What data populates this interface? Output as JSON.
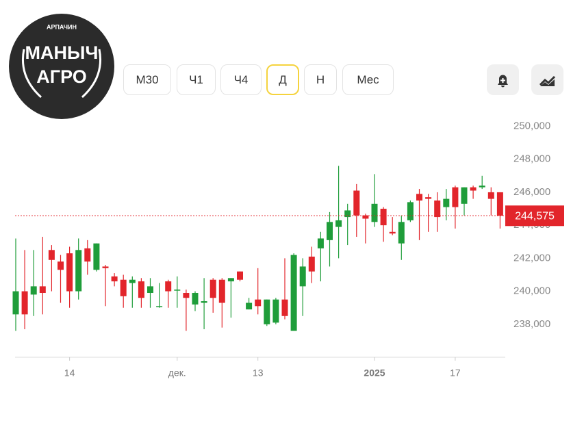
{
  "logo": {
    "top": "АРПАЧИН",
    "line1": "МАНЫЧ",
    "line2": "АГРО"
  },
  "timeframes": [
    {
      "label": "М30",
      "selected": false
    },
    {
      "label": "Ч1",
      "selected": false
    },
    {
      "label": "Ч4",
      "selected": false
    },
    {
      "label": "Д",
      "selected": true
    },
    {
      "label": "Н",
      "selected": false
    },
    {
      "label": "Мес",
      "selected": false
    }
  ],
  "chart_data": {
    "type": "candlestick",
    "categories": [
      null,
      null,
      null,
      null,
      null,
      null,
      "14",
      null,
      null,
      null,
      null,
      null,
      null,
      null,
      null,
      null,
      null,
      null,
      "дек.",
      null,
      null,
      null,
      null,
      null,
      null,
      null,
      null,
      "13",
      null,
      null,
      null,
      null,
      null,
      null,
      null,
      null,
      null,
      null,
      null,
      null,
      "2025",
      null,
      null,
      null,
      null,
      null,
      null,
      null,
      null,
      "17",
      null,
      null,
      null,
      null,
      null
    ],
    "open": [
      238600,
      240000,
      239800,
      240300,
      242500,
      241800,
      242300,
      240000,
      242600,
      241300,
      241500,
      240900,
      240700,
      240500,
      240600,
      239900,
      239100,
      240600,
      240100,
      239900,
      239200,
      239300,
      240700,
      240700,
      240600,
      241200,
      238900,
      239500,
      238000,
      238100,
      239500,
      237600,
      240300,
      242100,
      242600,
      243100,
      243900,
      244500,
      246100,
      244600,
      244200,
      245000,
      243600,
      242900,
      244300,
      245900,
      245700,
      245500,
      245100,
      246300,
      245300,
      246300,
      246300,
      246000,
      246000
    ],
    "high": [
      243200,
      242500,
      242500,
      243300,
      242800,
      242200,
      242700,
      243200,
      243100,
      242900,
      241600,
      241100,
      241000,
      240900,
      240800,
      240800,
      240500,
      240700,
      240900,
      240100,
      240000,
      240800,
      240800,
      240800,
      240800,
      241200,
      239600,
      241400,
      239500,
      239600,
      242000,
      242300,
      242000,
      242700,
      243600,
      244800,
      247600,
      245300,
      246500,
      244700,
      247100,
      245100,
      244500,
      244600,
      245500,
      246200,
      245900,
      246000,
      246200,
      246400,
      246300,
      246400,
      247000,
      246300,
      246000
    ],
    "low": [
      237600,
      237700,
      238500,
      238600,
      240000,
      239300,
      239000,
      239500,
      241000,
      241200,
      239100,
      240300,
      239000,
      239000,
      239000,
      239000,
      239000,
      239000,
      239000,
      237600,
      238800,
      237700,
      238700,
      237800,
      238400,
      240600,
      238900,
      238600,
      237900,
      238000,
      238300,
      237600,
      238500,
      240500,
      240600,
      241500,
      242000,
      242800,
      243300,
      242900,
      243900,
      243000,
      243400,
      241900,
      244200,
      243100,
      243600,
      243600,
      244300,
      243800,
      244600,
      245600,
      246200,
      244600,
      243800
    ],
    "close": [
      240000,
      238600,
      240300,
      239900,
      241900,
      241300,
      240000,
      242500,
      241800,
      242900,
      241400,
      240600,
      239700,
      240700,
      239600,
      240300,
      239100,
      240000,
      240100,
      239600,
      239900,
      239400,
      239600,
      239300,
      240800,
      240700,
      239300,
      239100,
      239500,
      239500,
      238500,
      242200,
      241500,
      241200,
      243200,
      244200,
      244300,
      244900,
      244600,
      244400,
      245300,
      244000,
      243500,
      244200,
      245400,
      245500,
      245600,
      244500,
      245600,
      245100,
      246300,
      246100,
      246400,
      245600,
      244575
    ],
    "up_color": "#1f9d3a",
    "down_color": "#e2252b",
    "ylim": [
      236500,
      250600
    ],
    "yticks": [
      {
        "value": 238000,
        "label": "238,000"
      },
      {
        "value": 240000,
        "label": "240,000"
      },
      {
        "value": 242000,
        "label": "242,000"
      },
      {
        "value": 244000,
        "label": "244,000"
      },
      {
        "value": 246000,
        "label": "246,000"
      },
      {
        "value": 248000,
        "label": "248,000"
      },
      {
        "value": 250000,
        "label": "250,000"
      }
    ],
    "current_price": {
      "value": 244575,
      "label": "244,575"
    }
  }
}
